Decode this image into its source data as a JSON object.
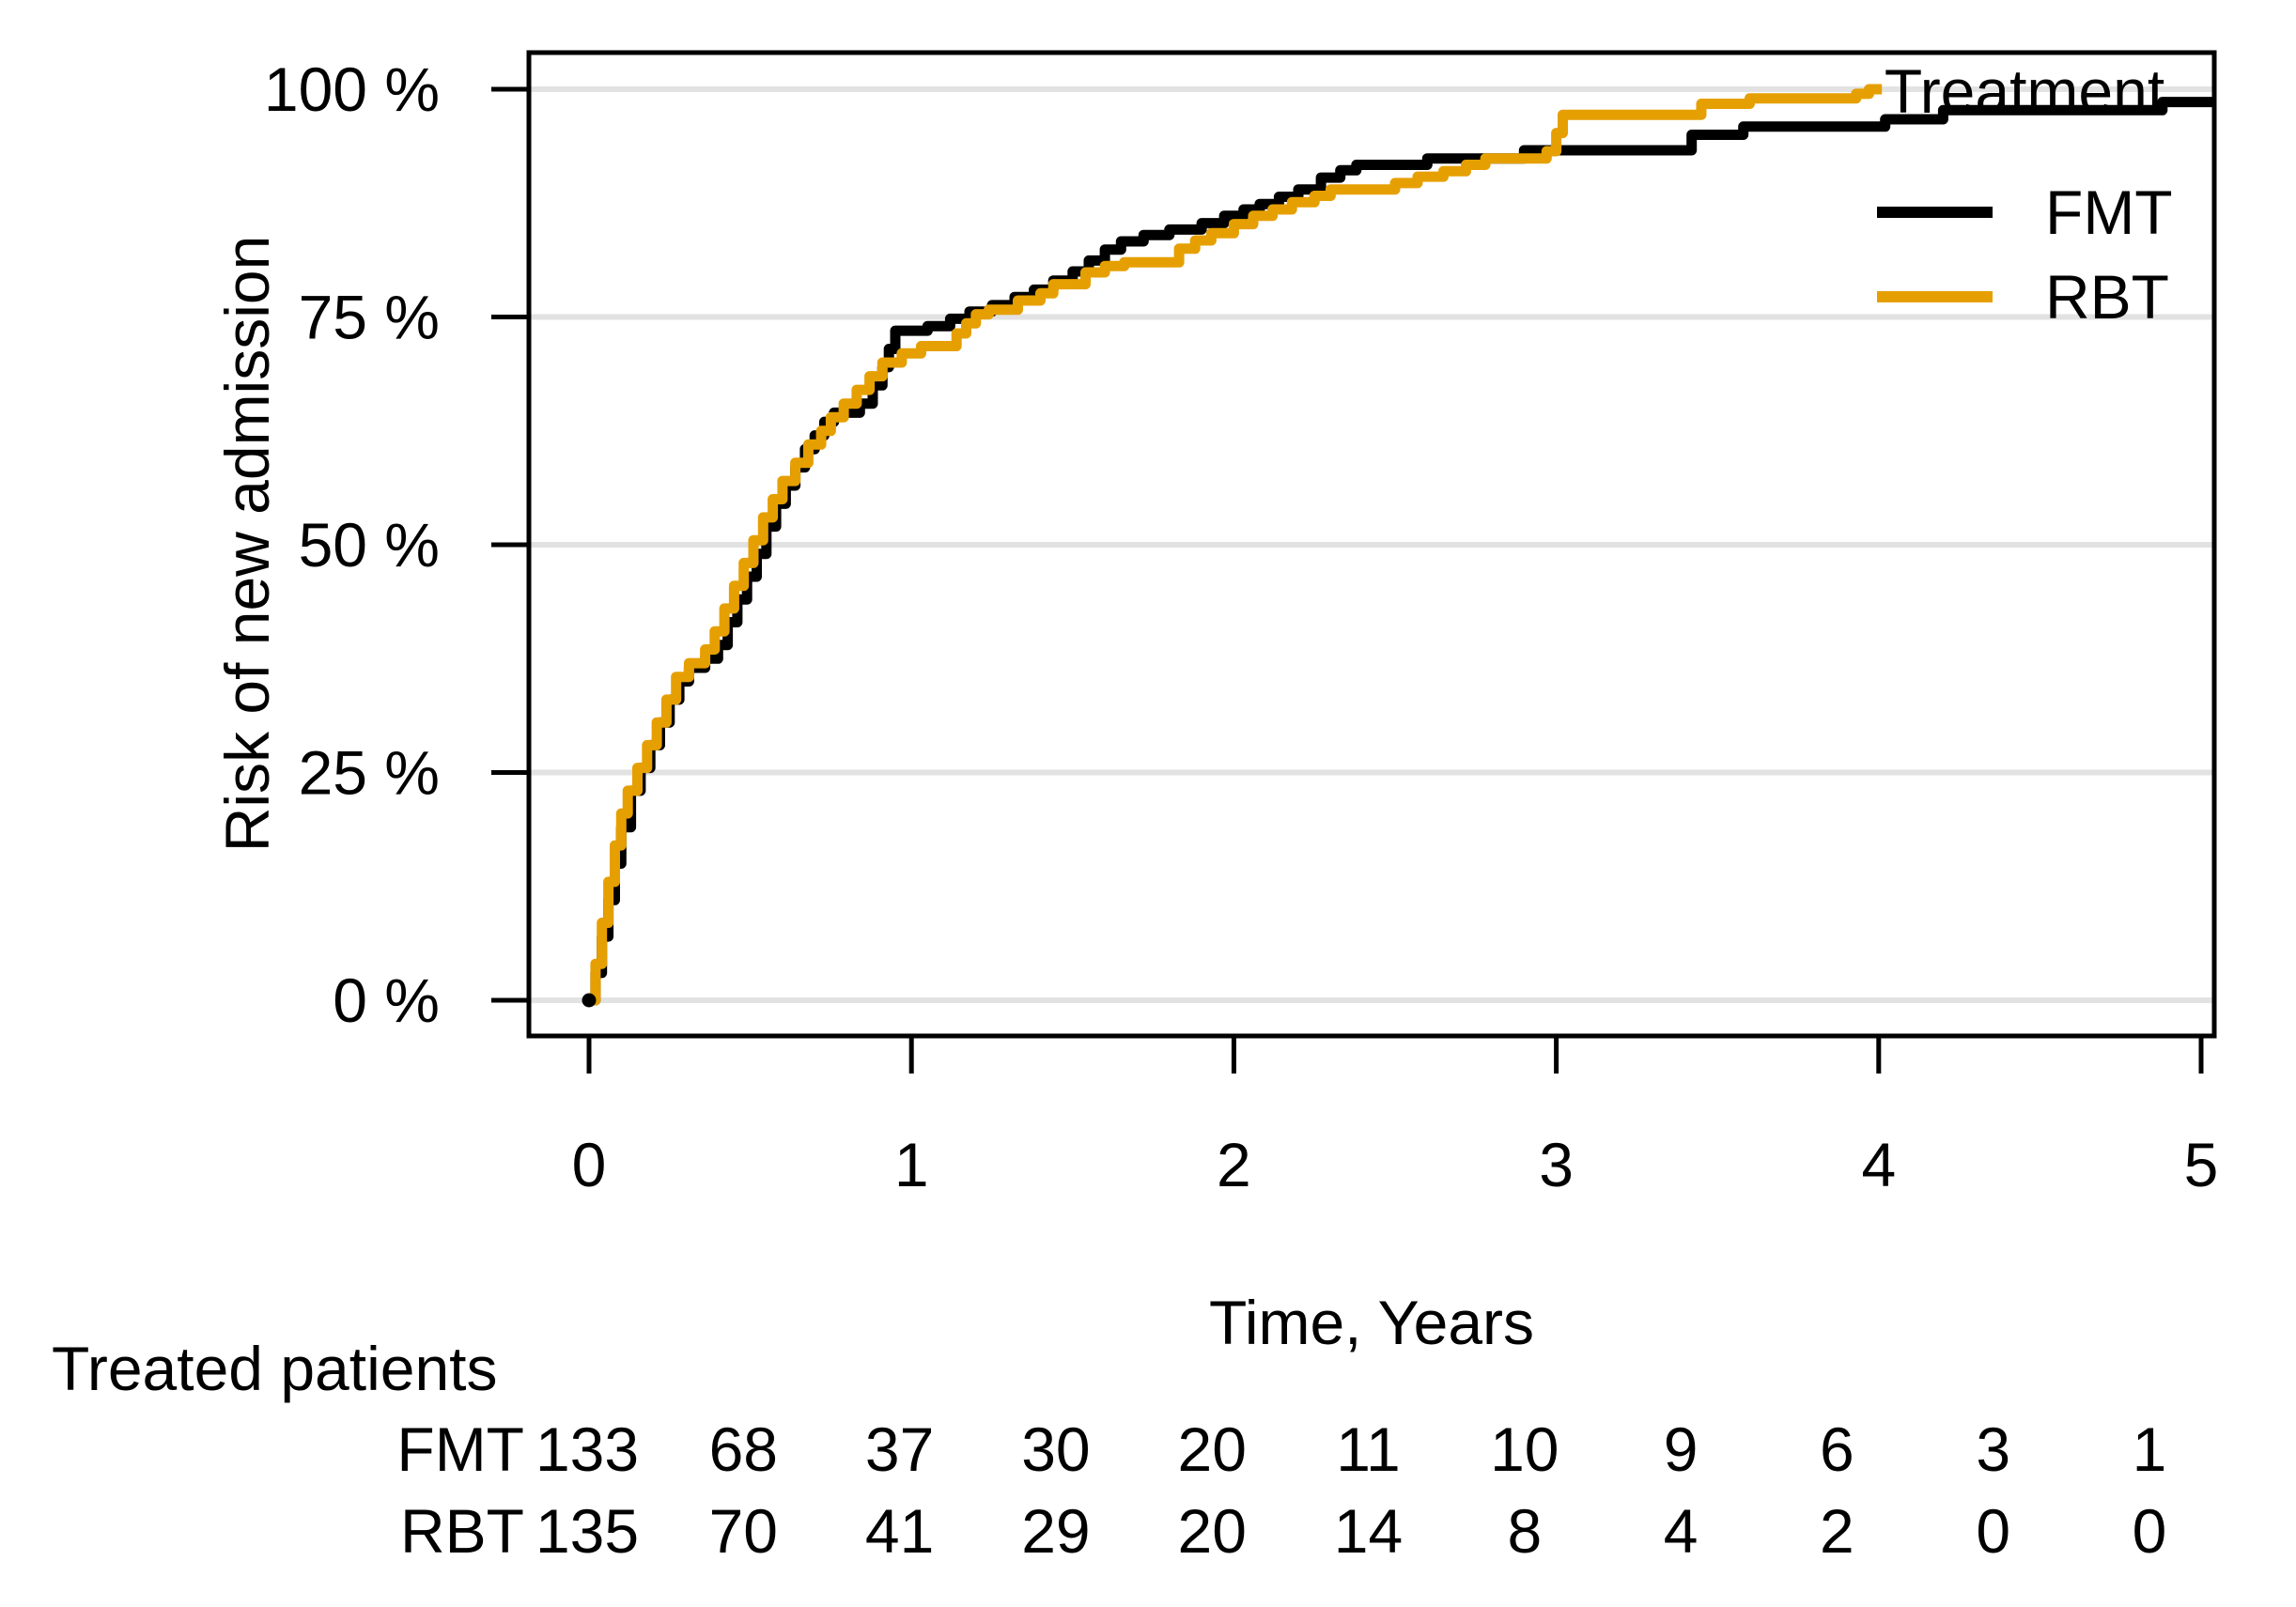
{
  "figure": {
    "y_axis": {
      "title": "Risk of new admission",
      "tick_labels": [
        "0 %",
        "25 %",
        "50 %",
        "75 %",
        "100 %"
      ],
      "tick_values": [
        0,
        25,
        50,
        75,
        100
      ]
    },
    "x_axis": {
      "title": "Time, Years",
      "tick_labels": [
        "0",
        "1",
        "2",
        "3",
        "4",
        "5"
      ],
      "tick_values": [
        0,
        1,
        2,
        3,
        4,
        5
      ]
    },
    "legend": {
      "title": "Treatment",
      "items": [
        {
          "label": "FMT",
          "color": "#000000"
        },
        {
          "label": "RBT",
          "color": "#E69F00"
        }
      ]
    },
    "risk_table": {
      "header": "Treated patients",
      "time_points": [
        0,
        0.5,
        1,
        1.5,
        2,
        2.5,
        3,
        3.5,
        4,
        4.5,
        5
      ],
      "rows": [
        {
          "label": "FMT",
          "color": "#000000",
          "values": [
            "133",
            "68",
            "37",
            "30",
            "20",
            "11",
            "10",
            "9",
            "6",
            "3",
            "1"
          ]
        },
        {
          "label": "RBT",
          "color": "#E69F00",
          "values": [
            "135",
            "70",
            "41",
            "29",
            "20",
            "14",
            "8",
            "4",
            "2",
            "0",
            "0"
          ]
        }
      ]
    },
    "colors": {
      "fmt": "#000000",
      "rbt": "#E69F00",
      "gridline": "#E2E2E2",
      "panel_border": "#000000"
    }
  },
  "chart_data": {
    "type": "line",
    "subtype": "step-cumulative-incidence",
    "title": "",
    "xlabel": "Time, Years",
    "ylabel": "Risk of new admission",
    "xlim": [
      -0.19,
      5.04
    ],
    "ylim": [
      0,
      100
    ],
    "x_ticks": [
      0,
      1,
      2,
      3,
      4,
      5
    ],
    "y_ticks": [
      0,
      25,
      50,
      75,
      100
    ],
    "grid": "horizontal-only",
    "legend_position": "top-right-inside",
    "series": [
      {
        "name": "FMT",
        "color": "#000000",
        "end_time": 5.06,
        "points": [
          [
            0,
            0
          ],
          [
            0.02,
            3
          ],
          [
            0.04,
            7
          ],
          [
            0.06,
            11
          ],
          [
            0.08,
            15
          ],
          [
            0.1,
            19
          ],
          [
            0.13,
            23
          ],
          [
            0.16,
            25.5
          ],
          [
            0.19,
            28
          ],
          [
            0.22,
            30.5
          ],
          [
            0.25,
            33
          ],
          [
            0.28,
            35
          ],
          [
            0.31,
            36.5
          ],
          [
            0.36,
            37.5
          ],
          [
            0.4,
            39
          ],
          [
            0.43,
            41.5
          ],
          [
            0.46,
            44
          ],
          [
            0.49,
            46.5
          ],
          [
            0.52,
            49
          ],
          [
            0.55,
            52
          ],
          [
            0.58,
            54.5
          ],
          [
            0.61,
            56.5
          ],
          [
            0.64,
            58.5
          ],
          [
            0.67,
            60.5
          ],
          [
            0.7,
            62
          ],
          [
            0.73,
            63.5
          ],
          [
            0.76,
            64.5
          ],
          [
            0.84,
            65.5
          ],
          [
            0.88,
            67.5
          ],
          [
            0.91,
            69.5
          ],
          [
            0.93,
            71.5
          ],
          [
            0.95,
            73.5
          ],
          [
            1.05,
            74
          ],
          [
            1.12,
            74.8
          ],
          [
            1.18,
            75.6
          ],
          [
            1.25,
            76.3
          ],
          [
            1.32,
            77.2
          ],
          [
            1.38,
            78
          ],
          [
            1.44,
            79
          ],
          [
            1.5,
            80
          ],
          [
            1.55,
            81.2
          ],
          [
            1.6,
            82.4
          ],
          [
            1.65,
            83.3
          ],
          [
            1.72,
            84
          ],
          [
            1.8,
            84.6
          ],
          [
            1.9,
            85.3
          ],
          [
            1.97,
            86.1
          ],
          [
            2.03,
            86.8
          ],
          [
            2.08,
            87.4
          ],
          [
            2.14,
            88.2
          ],
          [
            2.2,
            89
          ],
          [
            2.27,
            90.3
          ],
          [
            2.33,
            91.1
          ],
          [
            2.38,
            91.7
          ],
          [
            2.6,
            92.4
          ],
          [
            2.9,
            93.3
          ],
          [
            3.42,
            95
          ],
          [
            3.58,
            95.9
          ],
          [
            4.02,
            96.7
          ],
          [
            4.2,
            97.7
          ],
          [
            4.88,
            98.6
          ]
        ]
      },
      {
        "name": "RBT",
        "color": "#E69F00",
        "end_time": 4.01,
        "points": [
          [
            0,
            0
          ],
          [
            0.02,
            4
          ],
          [
            0.04,
            8.5
          ],
          [
            0.06,
            13
          ],
          [
            0.08,
            17
          ],
          [
            0.1,
            20.5
          ],
          [
            0.12,
            23
          ],
          [
            0.15,
            25.5
          ],
          [
            0.18,
            28
          ],
          [
            0.21,
            30.5
          ],
          [
            0.24,
            33
          ],
          [
            0.27,
            35.5
          ],
          [
            0.31,
            37
          ],
          [
            0.36,
            38.5
          ],
          [
            0.39,
            40.5
          ],
          [
            0.42,
            43
          ],
          [
            0.45,
            45.5
          ],
          [
            0.48,
            48
          ],
          [
            0.51,
            50.5
          ],
          [
            0.54,
            53
          ],
          [
            0.57,
            55
          ],
          [
            0.6,
            57
          ],
          [
            0.64,
            59
          ],
          [
            0.68,
            61
          ],
          [
            0.72,
            62.5
          ],
          [
            0.75,
            64
          ],
          [
            0.79,
            65.5
          ],
          [
            0.83,
            67
          ],
          [
            0.87,
            68.5
          ],
          [
            0.91,
            70
          ],
          [
            0.97,
            71
          ],
          [
            1.03,
            71.8
          ],
          [
            1.14,
            73.2
          ],
          [
            1.17,
            74.3
          ],
          [
            1.2,
            75.3
          ],
          [
            1.24,
            75.8
          ],
          [
            1.33,
            76.8
          ],
          [
            1.4,
            77.6
          ],
          [
            1.44,
            78.6
          ],
          [
            1.54,
            79.9
          ],
          [
            1.6,
            80.6
          ],
          [
            1.66,
            81
          ],
          [
            1.83,
            82.5
          ],
          [
            1.88,
            83.4
          ],
          [
            1.93,
            84.2
          ],
          [
            2.0,
            85.2
          ],
          [
            2.06,
            86.1
          ],
          [
            2.12,
            86.8
          ],
          [
            2.18,
            87.6
          ],
          [
            2.25,
            88.3
          ],
          [
            2.3,
            89
          ],
          [
            2.5,
            89.7
          ],
          [
            2.57,
            90.4
          ],
          [
            2.65,
            91
          ],
          [
            2.72,
            91.7
          ],
          [
            2.78,
            92.4
          ],
          [
            2.97,
            93.2
          ],
          [
            3.0,
            95.2
          ],
          [
            3.02,
            97.2
          ],
          [
            3.45,
            98.4
          ],
          [
            3.6,
            99
          ],
          [
            3.93,
            99.5
          ],
          [
            3.97,
            100
          ]
        ]
      }
    ],
    "risk_table": {
      "header": "Treated patients",
      "time_points": [
        0,
        0.5,
        1,
        1.5,
        2,
        2.5,
        3,
        3.5,
        4,
        4.5,
        5
      ],
      "FMT": [
        133,
        68,
        37,
        30,
        20,
        11,
        10,
        9,
        6,
        3,
        1
      ],
      "RBT": [
        135,
        70,
        41,
        29,
        20,
        14,
        8,
        4,
        2,
        0,
        0
      ]
    }
  }
}
